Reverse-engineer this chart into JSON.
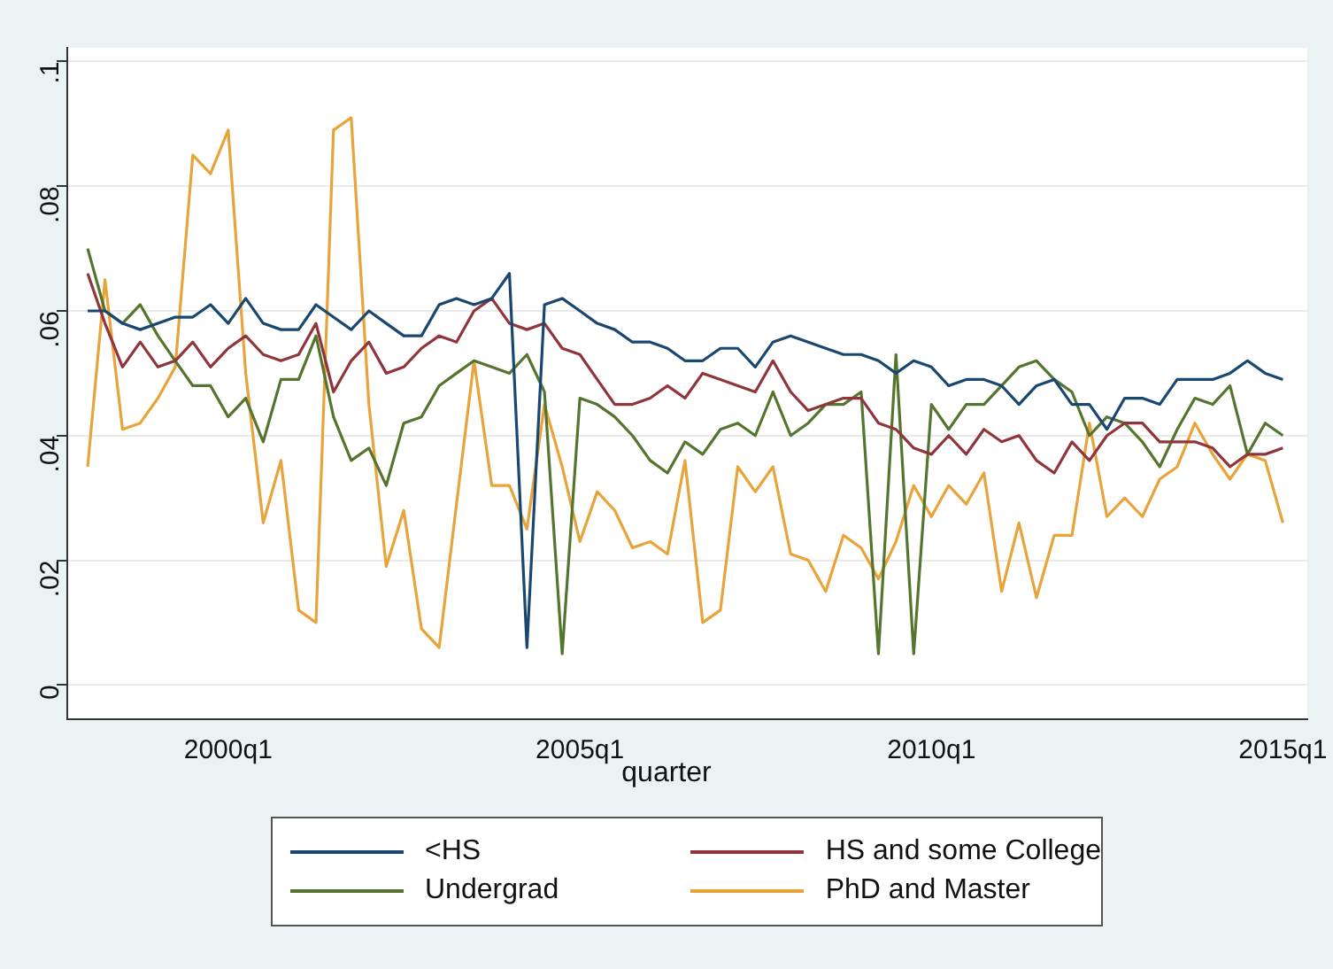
{
  "chart_data": {
    "type": "line",
    "xlabel": "quarter",
    "x": [
      "1998-01",
      "1998-04",
      "1998-07",
      "1998-10",
      "1999-01",
      "1999-04",
      "1999-07",
      "1999-10",
      "2000-01",
      "2000-04",
      "2000-07",
      "2000-10",
      "2001-01",
      "2001-04",
      "2001-07",
      "2001-10",
      "2002-01",
      "2002-04",
      "2002-07",
      "2002-10",
      "2003-01",
      "2003-04",
      "2003-07",
      "2003-10",
      "2004-01",
      "2004-04",
      "2004-07",
      "2004-10",
      "2005-01",
      "2005-04",
      "2005-07",
      "2005-10",
      "2006-01",
      "2006-04",
      "2006-07",
      "2006-10",
      "2007-01",
      "2007-04",
      "2007-07",
      "2007-10",
      "2008-01",
      "2008-04",
      "2008-07",
      "2008-10",
      "2009-01",
      "2009-04",
      "2009-07",
      "2009-10",
      "2010-01",
      "2010-04",
      "2010-07",
      "2010-10",
      "2011-01",
      "2011-04",
      "2011-07",
      "2011-10",
      "2012-01",
      "2012-04",
      "2012-07",
      "2012-10",
      "2013-01",
      "2013-04",
      "2013-07",
      "2013-10",
      "2014-01",
      "2014-04",
      "2014-07",
      "2014-10",
      "2015-01"
    ],
    "series": [
      {
        "name": "<HS",
        "color": "#1a476f",
        "values": [
          0.06,
          0.06,
          0.058,
          0.057,
          0.058,
          0.059,
          0.059,
          0.061,
          0.058,
          0.062,
          0.058,
          0.057,
          0.057,
          0.061,
          0.059,
          0.057,
          0.06,
          0.058,
          0.056,
          0.056,
          0.061,
          0.062,
          0.061,
          0.062,
          0.066,
          0.006,
          0.061,
          0.062,
          0.06,
          0.058,
          0.057,
          0.055,
          0.055,
          0.054,
          0.052,
          0.052,
          0.054,
          0.054,
          0.051,
          0.055,
          0.056,
          0.055,
          0.054,
          0.053,
          0.053,
          0.052,
          0.05,
          0.052,
          0.051,
          0.048,
          0.049,
          0.049,
          0.048,
          0.045,
          0.048,
          0.049,
          0.045,
          0.045,
          0.041,
          0.046,
          0.046,
          0.045,
          0.049,
          0.049,
          0.049,
          0.05,
          0.052,
          0.05,
          0.049
        ]
      },
      {
        "name": "HS and some College",
        "color": "#90353b",
        "values": [
          0.066,
          0.058,
          0.051,
          0.055,
          0.051,
          0.052,
          0.055,
          0.051,
          0.054,
          0.056,
          0.053,
          0.052,
          0.053,
          0.058,
          0.047,
          0.052,
          0.055,
          0.05,
          0.051,
          0.054,
          0.056,
          0.055,
          0.06,
          0.062,
          0.058,
          0.057,
          0.058,
          0.054,
          0.053,
          0.049,
          0.045,
          0.045,
          0.046,
          0.048,
          0.046,
          0.05,
          0.049,
          0.048,
          0.047,
          0.052,
          0.047,
          0.044,
          0.045,
          0.046,
          0.046,
          0.042,
          0.041,
          0.038,
          0.037,
          0.04,
          0.037,
          0.041,
          0.039,
          0.04,
          0.036,
          0.034,
          0.039,
          0.036,
          0.04,
          0.042,
          0.042,
          0.039,
          0.039,
          0.039,
          0.038,
          0.035,
          0.037,
          0.037,
          0.038
        ]
      },
      {
        "name": "Undergrad",
        "color": "#55752f",
        "values": [
          0.07,
          0.06,
          0.058,
          0.061,
          0.056,
          0.052,
          0.048,
          0.048,
          0.043,
          0.046,
          0.039,
          0.049,
          0.049,
          0.056,
          0.043,
          0.036,
          0.038,
          0.032,
          0.042,
          0.043,
          0.048,
          0.05,
          0.052,
          0.051,
          0.05,
          0.053,
          0.047,
          0.005,
          0.046,
          0.045,
          0.043,
          0.04,
          0.036,
          0.034,
          0.039,
          0.037,
          0.041,
          0.042,
          0.04,
          0.047,
          0.04,
          0.042,
          0.045,
          0.045,
          0.047,
          0.005,
          0.053,
          0.005,
          0.045,
          0.041,
          0.045,
          0.045,
          0.048,
          0.051,
          0.052,
          0.049,
          0.047,
          0.04,
          0.043,
          0.042,
          0.039,
          0.035,
          0.041,
          0.046,
          0.045,
          0.048,
          0.037,
          0.042,
          0.04
        ]
      },
      {
        "name": "PhD and Master",
        "color": "#e8a33a",
        "values": [
          0.035,
          0.065,
          0.041,
          0.042,
          0.046,
          0.051,
          0.085,
          0.082,
          0.089,
          0.05,
          0.026,
          0.036,
          0.012,
          0.01,
          0.089,
          0.091,
          0.045,
          0.019,
          0.028,
          0.009,
          0.006,
          0.029,
          0.052,
          0.032,
          0.032,
          0.025,
          0.045,
          0.035,
          0.023,
          0.031,
          0.028,
          0.022,
          0.023,
          0.021,
          0.036,
          0.01,
          0.012,
          0.035,
          0.031,
          0.035,
          0.021,
          0.02,
          0.015,
          0.024,
          0.022,
          0.017,
          0.023,
          0.032,
          0.027,
          0.032,
          0.029,
          0.034,
          0.015,
          0.026,
          0.014,
          0.024,
          0.024,
          0.042,
          0.027,
          0.03,
          0.027,
          0.033,
          0.035,
          0.042,
          0.037,
          0.033,
          0.037,
          0.036,
          0.026
        ]
      }
    ],
    "xlim": [
      "1997-09-17",
      "2015-05-07"
    ],
    "xticks": [
      {
        "value": "2000-01",
        "label": "2000q1"
      },
      {
        "value": "2005-01",
        "label": "2005q1"
      },
      {
        "value": "2010-01",
        "label": "2010q1"
      },
      {
        "value": "2015-01",
        "label": "2015q1"
      }
    ],
    "ylim": [
      -0.0055,
      0.1022
    ],
    "yticks": [
      0,
      {
        "value": 0.02,
        "label": ".02"
      },
      {
        "value": 0.04,
        "label": ".04"
      },
      {
        "value": 0.06,
        "label": ".06"
      },
      {
        "value": 0.08,
        "label": ".08"
      },
      {
        "value": 0.1,
        "label": ".1"
      }
    ],
    "grid": "y",
    "legend": "bottom",
    "marker": "none",
    "line_style": "solid"
  }
}
